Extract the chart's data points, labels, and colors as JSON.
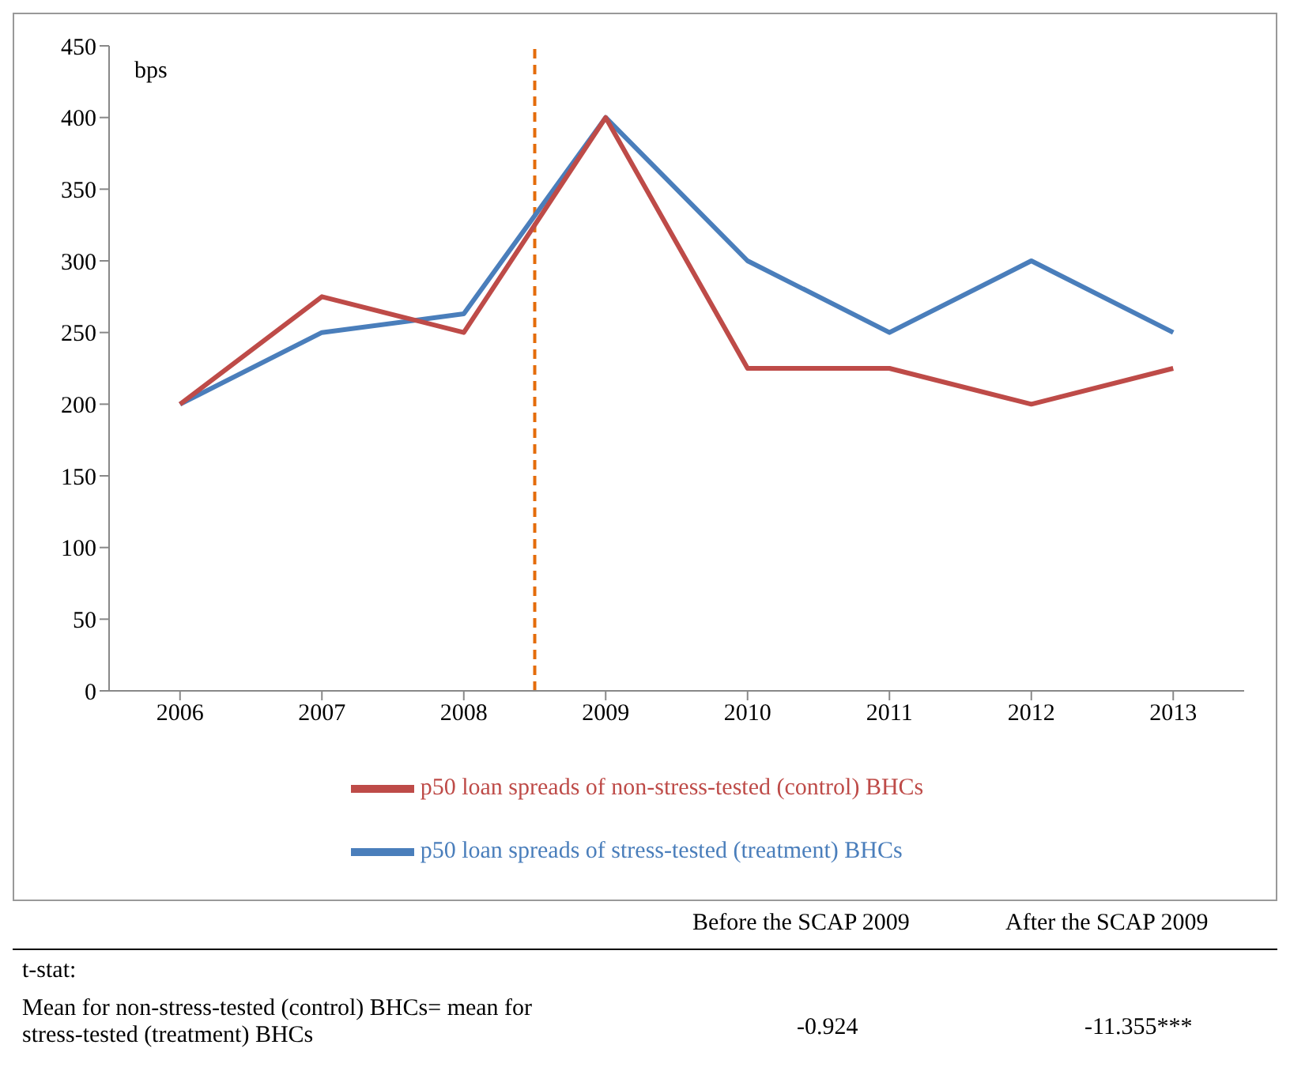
{
  "chart_data": {
    "type": "line",
    "ylabel": "bps",
    "x": [
      2006,
      2007,
      2008,
      2009,
      2010,
      2011,
      2012,
      2013
    ],
    "xlim": [
      2005.5,
      2013.5
    ],
    "xticks": [
      2006,
      2007,
      2008,
      2009,
      2010,
      2011,
      2012,
      2013
    ],
    "ylim": [
      0,
      450
    ],
    "yticks": [
      0,
      50,
      100,
      150,
      200,
      250,
      300,
      350,
      400,
      450
    ],
    "series": [
      {
        "name": "p50 loan spreads of stress-tested (treatment) BHCs",
        "color": "#4a7ebb",
        "values": [
          200,
          250,
          263,
          400,
          300,
          250,
          300,
          250
        ]
      },
      {
        "name": "p50 loan spreads of non-stress-tested (control) BHCs",
        "color": "#be4b48",
        "values": [
          200,
          275,
          250,
          400,
          225,
          225,
          200,
          225
        ]
      }
    ],
    "ref_lines": [
      {
        "axis": "x",
        "value": 2008.5,
        "color": "#e46c0a",
        "line_style": "dashed"
      }
    ],
    "grid": false,
    "legend": "bottom",
    "marker": "none",
    "line_style": "solid",
    "annotations": [
      "Before the SCAP 2009",
      "After the SCAP 2009",
      "t-stat:",
      "Mean for non-stress-tested (control) BHCs= mean for stress-tested (treatment) BHCs",
      "-0.924",
      "-11.355***"
    ]
  }
}
